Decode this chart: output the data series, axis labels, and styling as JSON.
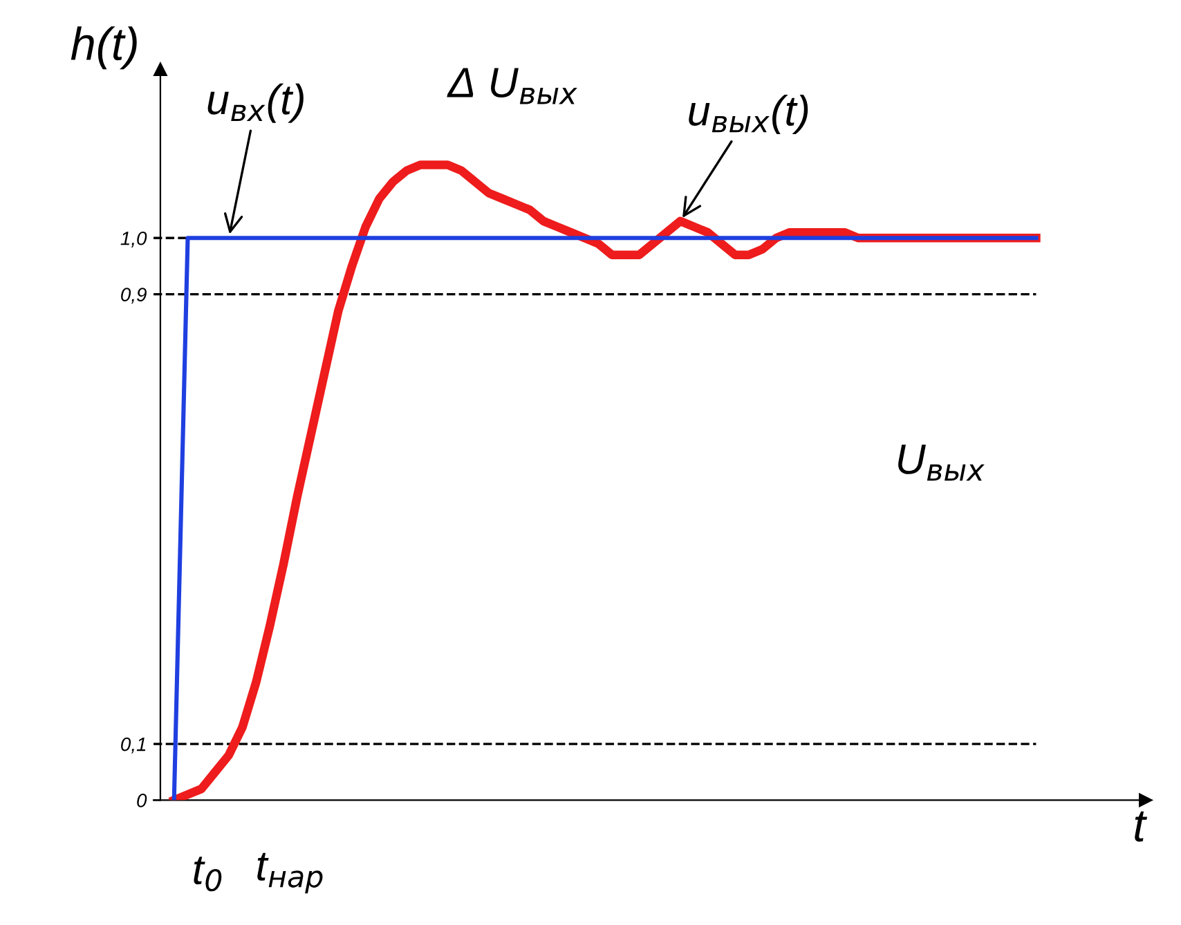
{
  "chart_data": {
    "type": "line",
    "xlabel": "t",
    "ylabel": "h(t)",
    "categories": [
      null,
      null,
      null,
      null,
      null,
      null,
      null,
      null,
      null,
      null,
      null,
      null,
      null,
      null,
      null,
      null,
      null,
      null,
      null,
      null,
      null,
      null,
      null,
      null,
      null,
      null,
      null,
      null,
      null,
      null,
      null,
      null,
      null,
      null,
      null,
      null,
      null,
      null,
      null,
      null,
      null,
      null,
      null,
      null,
      null,
      null,
      null,
      null,
      null,
      null,
      null,
      null,
      null,
      null,
      null,
      null,
      null,
      null,
      null,
      null,
      null,
      null,
      null,
      null
    ],
    "series": [
      {
        "name": "u$_{вх}$(t)",
        "color": "#1f3fe0",
        "values": [
          0,
          1,
          1,
          1,
          1,
          1,
          1,
          1,
          1,
          1,
          1,
          1,
          1,
          1,
          1,
          1,
          1,
          1,
          1,
          1,
          1,
          1,
          1,
          1,
          1,
          1,
          1,
          1,
          1,
          1,
          1,
          1,
          1,
          1,
          1,
          1,
          1,
          1,
          1,
          1,
          1,
          1,
          1,
          1,
          1,
          1,
          1,
          1,
          1,
          1,
          1,
          1,
          1,
          1,
          1,
          1,
          1,
          1,
          1,
          1,
          1,
          1,
          1,
          1
        ]
      },
      {
        "name": "u$_{вых}$(t)",
        "color": "#ee1c1c",
        "values": [
          0,
          0.01,
          0.02,
          0.05,
          0.08,
          0.13,
          0.21,
          0.31,
          0.42,
          0.54,
          0.65,
          0.76,
          0.87,
          0.95,
          1.02,
          1.07,
          1.1,
          1.12,
          1.13,
          1.13,
          1.13,
          1.12,
          1.1,
          1.08,
          1.07,
          1.06,
          1.05,
          1.03,
          1.02,
          1.01,
          1.0,
          0.99,
          0.97,
          0.97,
          0.97,
          0.99,
          1.01,
          1.03,
          1.02,
          1.01,
          0.99,
          0.97,
          0.97,
          0.98,
          1.0,
          1.01,
          1.01,
          1.01,
          1.01,
          1.01,
          1.0,
          1.0,
          1.0,
          1.0,
          1.0,
          1.0,
          1.0,
          1.0,
          1.0,
          1.0,
          1.0,
          1.0,
          1.0,
          1.0
        ]
      }
    ],
    "ylim": [
      0,
      1.3
    ],
    "yticks": [
      0,
      {
        "value": 0.1,
        "label": "0,1"
      },
      {
        "value": 0.9,
        "label": "0,9"
      },
      {
        "value": 1.0,
        "label": "1,0"
      }
    ],
    "tick_labels": "y",
    "ref_lines": [
      {
        "axis": "y",
        "value": 0.1,
        "line_style": "dashed",
        "color": "#000000"
      },
      {
        "axis": "y",
        "value": 0.9,
        "line_style": "dashed",
        "color": "#000000"
      },
      {
        "axis": "y",
        "value": 1.0,
        "line_style": "dashed",
        "color": "#000000"
      }
    ],
    "annotations": [
      "Δ U$_{вых}$",
      "U$_{вых}$",
      "t$_{0}$",
      "t$_{нар}$"
    ],
    "grid": false,
    "legend": false
  }
}
